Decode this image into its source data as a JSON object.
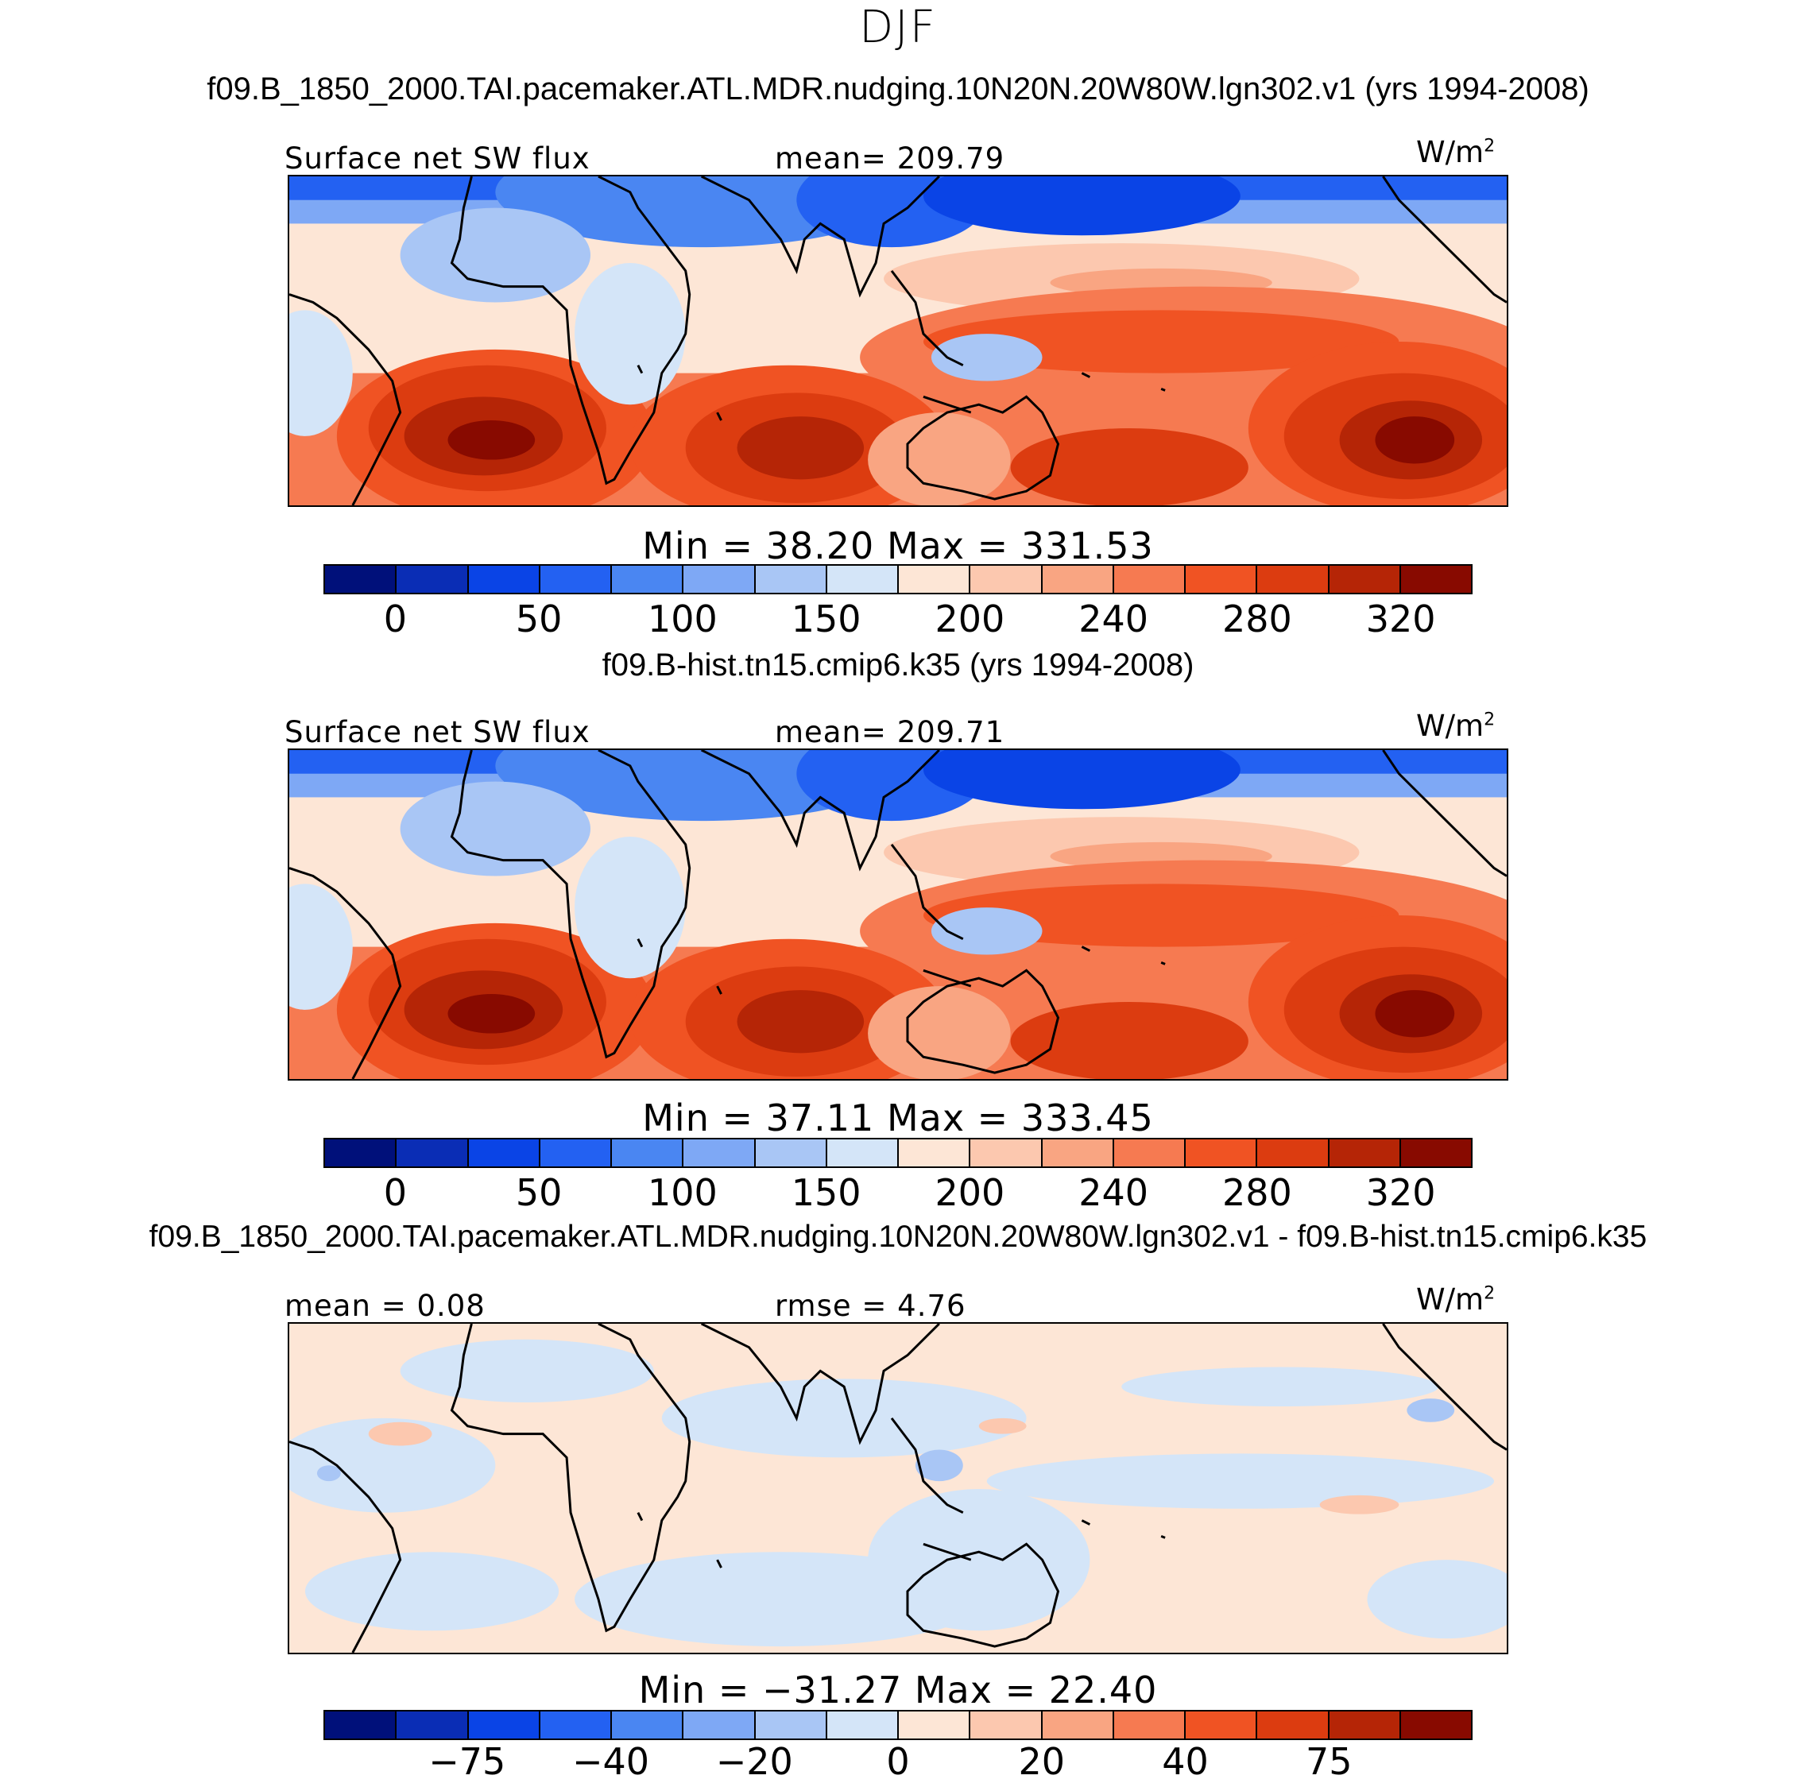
{
  "figure": {
    "season": "DJF",
    "units_base": "W/m",
    "units_exp": "2"
  },
  "panels": [
    {
      "case_title": "f09.B_1850_2000.TAI.pacemaker.ATL.MDR.nudging.10N20N.20W80W.lgn302.v1 (yrs 1994-2008)",
      "left_label": "Surface net SW flux",
      "center_label": "mean= 209.79",
      "minmax_label": "Min =   38.20  Max =  331.53",
      "cbar_ticks": [
        "0",
        "50",
        "100",
        "150",
        "200",
        "240",
        "280",
        "320"
      ]
    },
    {
      "case_title": "f09.B-hist.tn15.cmip6.k35 (yrs 1994-2008)",
      "left_label": "Surface net SW flux",
      "center_label": "mean= 209.71",
      "minmax_label": "Min =   37.11  Max =  333.45",
      "cbar_ticks": [
        "0",
        "50",
        "100",
        "150",
        "200",
        "240",
        "280",
        "320"
      ]
    },
    {
      "case_title": "f09.B_1850_2000.TAI.pacemaker.ATL.MDR.nudging.10N20N.20W80W.lgn302.v1 - f09.B-hist.tn15.cmip6.k35",
      "left_label": "mean =    0.08",
      "center_label": "rmse =    4.76",
      "minmax_label": "Min = −31.27  Max =   22.40",
      "cbar_ticks": [
        "−75",
        "−40",
        "−20",
        "0",
        "20",
        "40",
        "75"
      ]
    }
  ],
  "colorbar_colors": [
    "#00107a",
    "#0a2db5",
    "#0a44e6",
    "#2361f2",
    "#4a86f2",
    "#7ea8f5",
    "#a9c6f5",
    "#d4e5f8",
    "#fde6d6",
    "#fcc8af",
    "#f9a582",
    "#f67a51",
    "#f05323",
    "#dc3c10",
    "#b52506",
    "#880a00"
  ]
}
